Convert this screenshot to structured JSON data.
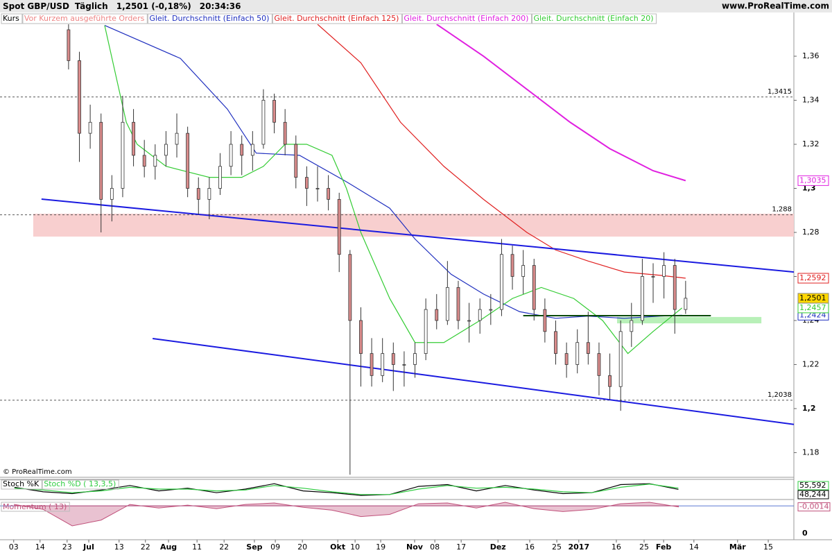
{
  "header": {
    "symbol": "Spot GBP/USD",
    "period": "Täglich",
    "quote": "1,2501 (-0,18%)",
    "time": "20:34:36",
    "site": "www.ProRealTime.com"
  },
  "copyright": "© ProRealTime.com",
  "chart_data": [
    {
      "type": "candlestick",
      "price_label": "Kurs",
      "orders_label": "Vor Kurzem ausgeführte Orders",
      "up_color": "#ffffff",
      "down_color": "#d98b8b",
      "edge_color": "#333333",
      "x": [
        19,
        22,
        25,
        28,
        31,
        34,
        37,
        40,
        43,
        46,
        49,
        52,
        55,
        58,
        61,
        64,
        67,
        70,
        73,
        76,
        79,
        82,
        85,
        88,
        91,
        94,
        97,
        100,
        103,
        106,
        109,
        112,
        115,
        118,
        121,
        124,
        127,
        130,
        133,
        136,
        139,
        142,
        145,
        148,
        151,
        154,
        157,
        160,
        163,
        166,
        169,
        172,
        175,
        178,
        181,
        184,
        187,
        190
      ],
      "open": [
        1.372,
        1.358,
        1.325,
        1.33,
        1.295,
        1.3,
        1.33,
        1.315,
        1.31,
        1.315,
        1.32,
        1.325,
        1.3,
        1.295,
        1.3,
        1.31,
        1.32,
        1.315,
        1.32,
        1.34,
        1.33,
        1.32,
        1.305,
        1.3,
        1.3,
        1.295,
        1.27,
        1.24,
        1.225,
        1.215,
        1.225,
        1.22,
        1.22,
        1.225,
        1.245,
        1.24,
        1.255,
        1.24,
        1.24,
        1.245,
        1.245,
        1.27,
        1.26,
        1.265,
        1.245,
        1.235,
        1.225,
        1.22,
        1.23,
        1.225,
        1.215,
        1.21,
        1.235,
        1.24,
        1.26,
        1.26,
        1.265,
        1.245
      ],
      "high": [
        1.375,
        1.362,
        1.338,
        1.334,
        1.306,
        1.342,
        1.336,
        1.322,
        1.32,
        1.326,
        1.334,
        1.328,
        1.305,
        1.305,
        1.316,
        1.326,
        1.324,
        1.326,
        1.345,
        1.343,
        1.336,
        1.324,
        1.31,
        1.31,
        1.306,
        1.298,
        1.272,
        1.246,
        1.232,
        1.232,
        1.23,
        1.226,
        1.23,
        1.25,
        1.252,
        1.267,
        1.258,
        1.248,
        1.25,
        1.252,
        1.277,
        1.274,
        1.272,
        1.268,
        1.25,
        1.24,
        1.23,
        1.236,
        1.244,
        1.23,
        1.225,
        1.24,
        1.248,
        1.268,
        1.266,
        1.271,
        1.268,
        1.258
      ],
      "low": [
        1.354,
        1.312,
        1.318,
        1.28,
        1.285,
        1.296,
        1.31,
        1.305,
        1.304,
        1.31,
        1.314,
        1.296,
        1.288,
        1.286,
        1.297,
        1.306,
        1.306,
        1.308,
        1.318,
        1.325,
        1.315,
        1.3,
        1.292,
        1.294,
        1.29,
        1.262,
        1.17,
        1.21,
        1.21,
        1.212,
        1.208,
        1.21,
        1.214,
        1.222,
        1.236,
        1.238,
        1.236,
        1.23,
        1.234,
        1.238,
        1.242,
        1.254,
        1.252,
        1.24,
        1.23,
        1.22,
        1.214,
        1.216,
        1.22,
        1.206,
        1.204,
        1.199,
        1.228,
        1.238,
        1.248,
        1.25,
        1.234,
        1.243
      ],
      "close": [
        1.358,
        1.325,
        1.33,
        1.295,
        1.3,
        1.33,
        1.315,
        1.31,
        1.315,
        1.32,
        1.325,
        1.3,
        1.295,
        1.3,
        1.31,
        1.32,
        1.315,
        1.32,
        1.34,
        1.33,
        1.32,
        1.305,
        1.3,
        1.3,
        1.295,
        1.27,
        1.24,
        1.225,
        1.215,
        1.225,
        1.22,
        1.22,
        1.225,
        1.245,
        1.24,
        1.255,
        1.24,
        1.24,
        1.245,
        1.245,
        1.27,
        1.26,
        1.265,
        1.245,
        1.235,
        1.225,
        1.22,
        1.23,
        1.225,
        1.215,
        1.21,
        1.235,
        1.24,
        1.26,
        1.26,
        1.265,
        1.245,
        1.2501
      ],
      "close_label": "1,2501",
      "close_box_color": "#ffd700",
      "series": [
        {
          "name": "Gleit. Durchschnitt (Einfach 50)",
          "color": "#1f2fbf",
          "x": [
            29,
            50,
            63,
            71,
            83,
            96,
            108,
            115,
            125,
            134,
            144,
            154,
            163,
            173,
            183,
            189
          ],
          "values": [
            1.374,
            1.359,
            1.336,
            1.316,
            1.315,
            1.303,
            1.291,
            1.277,
            1.261,
            1.252,
            1.244,
            1.241,
            1.242,
            1.241,
            1.242,
            1.2424
          ],
          "last_label": "1,2424"
        },
        {
          "name": "Gleit. Durchschnitt (Einfach 125)",
          "color": "#e02020",
          "x": [
            88,
            100,
            111,
            123,
            134,
            146,
            154,
            163,
            173,
            183,
            190
          ],
          "values": [
            1.3745,
            1.357,
            1.33,
            1.31,
            1.295,
            1.28,
            1.272,
            1.267,
            1.262,
            1.2605,
            1.2592
          ],
          "last_label": "1,2592"
        },
        {
          "name": "Gleit. Durchschnitt (Einfach 200)",
          "color": "#e020e0",
          "x": [
            121,
            134,
            146,
            158,
            169,
            181,
            190
          ],
          "values": [
            1.3745,
            1.36,
            1.345,
            1.33,
            1.318,
            1.308,
            1.3035
          ],
          "last_label": "1,3035"
        },
        {
          "name": "Gleit. Durchschnitt (Einfach 20)",
          "color": "#33cc33",
          "x": [
            29,
            35,
            38,
            46,
            58,
            67,
            73,
            79,
            85,
            92,
            96,
            100,
            108,
            115,
            123,
            133,
            142,
            150,
            159,
            167,
            174,
            181,
            189
          ],
          "values": [
            1.374,
            1.33,
            1.32,
            1.31,
            1.305,
            1.305,
            1.31,
            1.32,
            1.32,
            1.315,
            1.3,
            1.28,
            1.25,
            1.23,
            1.23,
            1.24,
            1.25,
            1.255,
            1.25,
            1.24,
            1.225,
            1.235,
            1.2457
          ],
          "last_label": "1,2457"
        }
      ],
      "trendlines": [
        {
          "color": "#1a1ae0",
          "x": [
            11.5,
            220
          ],
          "values": [
            1.2951,
            1.262
          ]
        },
        {
          "color": "#1a1ae0",
          "x": [
            42.3,
            220
          ],
          "values": [
            1.2318,
            1.1928
          ]
        },
        {
          "color": "#0a4a0a",
          "x": [
            145,
            197
          ],
          "values": [
            1.2422,
            1.2422
          ]
        }
      ],
      "zones": [
        {
          "color": "#f8cfcf",
          "x": [
            9.2,
            220
          ],
          "top": 1.2885,
          "bottom": 1.2781
        },
        {
          "color": "#b8f0b8",
          "x": [
            171,
            211
          ],
          "top": 1.2416,
          "bottom": 1.2387
        }
      ],
      "levels": [
        {
          "value": 1.3415,
          "label": "1,3415"
        },
        {
          "value": 1.288,
          "label": "1,288"
        },
        {
          "value": 1.2038,
          "label": "1,2038"
        }
      ],
      "xlim": [
        0,
        220
      ],
      "ylim": [
        1.1688,
        1.3745
      ],
      "yticks": [
        {
          "value": 1.18,
          "label": "1,18"
        },
        {
          "value": 1.2,
          "label": "1,2"
        },
        {
          "value": 1.22,
          "label": "1,22"
        },
        {
          "value": 1.24,
          "label": "1,24"
        },
        {
          "value": 1.26,
          "label": "1,26"
        },
        {
          "value": 1.28,
          "label": "1,28"
        },
        {
          "value": 1.3,
          "label": "1,3"
        },
        {
          "value": 1.32,
          "label": "1,32"
        },
        {
          "value": 1.34,
          "label": "1,34"
        },
        {
          "value": 1.36,
          "label": "1,36"
        }
      ],
      "xticks": [
        {
          "value": 3.8,
          "label": "03"
        },
        {
          "value": 11.1,
          "label": "14"
        },
        {
          "value": 18.6,
          "label": "23"
        },
        {
          "value": 24.6,
          "label": "Jul"
        },
        {
          "value": 33,
          "label": "13"
        },
        {
          "value": 40.3,
          "label": "22"
        },
        {
          "value": 46.7,
          "label": "Aug"
        },
        {
          "value": 54.6,
          "label": "11"
        },
        {
          "value": 62.1,
          "label": "22"
        },
        {
          "value": 70.5,
          "label": "Sep"
        },
        {
          "value": 76.3,
          "label": "09"
        },
        {
          "value": 83.8,
          "label": "20"
        },
        {
          "value": 93.6,
          "label": "Okt"
        },
        {
          "value": 98.4,
          "label": "10"
        },
        {
          "value": 105.5,
          "label": "19"
        },
        {
          "value": 114.9,
          "label": "Nov"
        },
        {
          "value": 120.5,
          "label": "08"
        },
        {
          "value": 127.8,
          "label": "17"
        },
        {
          "value": 138,
          "label": "Dez"
        },
        {
          "value": 146.8,
          "label": "16"
        },
        {
          "value": 154.3,
          "label": "25"
        },
        {
          "value": 160.4,
          "label": "2017"
        },
        {
          "value": 170.8,
          "label": "16"
        },
        {
          "value": 178.5,
          "label": "25"
        },
        {
          "value": 183.9,
          "label": "Feb"
        },
        {
          "value": 192.3,
          "label": "14"
        },
        {
          "value": 204.4,
          "label": "Mär"
        },
        {
          "value": 212.9,
          "label": "15"
        }
      ]
    },
    {
      "type": "line",
      "xlim": [
        0,
        220
      ],
      "ylim": [
        0,
        100
      ],
      "series": [
        {
          "name": "Stoch %K",
          "color": "#000000",
          "x": [
            4,
            12,
            20,
            28,
            36,
            44,
            52,
            60,
            68,
            76,
            84,
            92,
            100,
            108,
            116,
            124,
            132,
            140,
            148,
            156,
            164,
            172,
            180,
            188
          ],
          "values": [
            60,
            35,
            25,
            45,
            70,
            40,
            55,
            30,
            50,
            80,
            40,
            30,
            15,
            20,
            65,
            75,
            40,
            70,
            45,
            25,
            30,
            75,
            80,
            48.244
          ],
          "last_label": "48,244"
        },
        {
          "name": "Stoch %D ( 13,3,5)",
          "color": "#2ecc40",
          "x": [
            4,
            12,
            20,
            28,
            36,
            44,
            52,
            60,
            68,
            76,
            84,
            92,
            100,
            108,
            116,
            124,
            132,
            140,
            148,
            156,
            164,
            172,
            180,
            188
          ],
          "values": [
            55,
            45,
            30,
            40,
            60,
            50,
            50,
            40,
            45,
            70,
            55,
            35,
            20,
            20,
            50,
            70,
            55,
            60,
            50,
            35,
            30,
            60,
            78,
            55.592
          ],
          "last_label": "55,592"
        }
      ]
    },
    {
      "type": "area",
      "xlim": [
        0,
        220
      ],
      "ylim": [
        -0.03,
        0.006
      ],
      "yticks": [
        0
      ],
      "series": [
        {
          "name": "Momentum ( 13)",
          "color": "#c0507a",
          "x": [
            4,
            12,
            20,
            28,
            36,
            44,
            52,
            60,
            68,
            76,
            84,
            92,
            100,
            108,
            116,
            124,
            132,
            140,
            148,
            156,
            164,
            172,
            180,
            188
          ],
          "values": [
            0.002,
            -0.005,
            -0.028,
            -0.02,
            0.002,
            -0.003,
            0.001,
            -0.004,
            0.002,
            0.004,
            -0.002,
            -0.006,
            -0.015,
            -0.012,
            0.003,
            0.004,
            -0.003,
            0.005,
            -0.004,
            -0.008,
            -0.005,
            0.003,
            0.005,
            -0.0014
          ],
          "last_label": "-0,0014"
        }
      ]
    }
  ]
}
